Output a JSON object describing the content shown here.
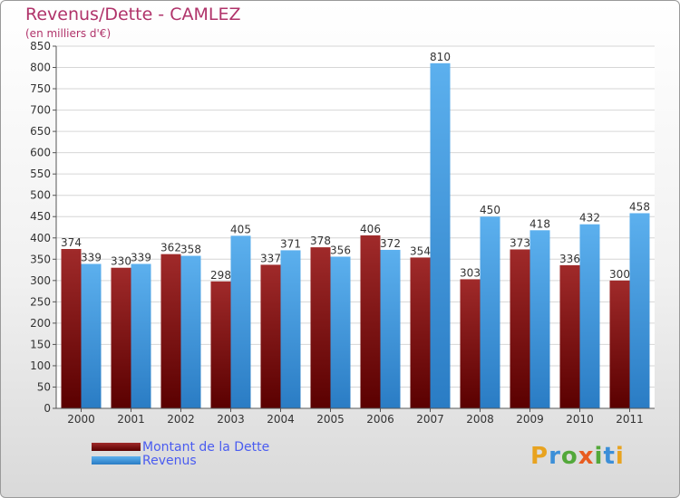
{
  "header": {
    "title": "Revenus/Dette - CAMLEZ",
    "subtitle": "(en milliers d'€)"
  },
  "chart_data": {
    "type": "bar",
    "categories": [
      "2000",
      "2001",
      "2002",
      "2003",
      "2004",
      "2005",
      "2006",
      "2007",
      "2008",
      "2009",
      "2010",
      "2011"
    ],
    "series": [
      {
        "name": "Montant de la Dette",
        "color": "#8a1a1a",
        "values": [
          374,
          330,
          362,
          298,
          337,
          378,
          406,
          354,
          303,
          373,
          336,
          300
        ]
      },
      {
        "name": "Revenus",
        "color": "#4aa3e6",
        "values": [
          339,
          339,
          358,
          405,
          371,
          356,
          372,
          810,
          450,
          418,
          432,
          458
        ]
      }
    ],
    "ylim": [
      0,
      850
    ],
    "yticks": [
      0,
      50,
      100,
      150,
      200,
      250,
      300,
      350,
      400,
      450,
      500,
      550,
      600,
      650,
      700,
      750,
      800,
      850
    ],
    "grid": true,
    "legend_position": "bottom-left"
  },
  "logo": {
    "letters": [
      "P",
      "r",
      "o",
      "x",
      "i",
      "t",
      "i"
    ],
    "colors": [
      "#e8a320",
      "#3c8fd8",
      "#53a83a",
      "#e85c20",
      "#53a83a",
      "#3c8fd8",
      "#e8a320"
    ]
  }
}
